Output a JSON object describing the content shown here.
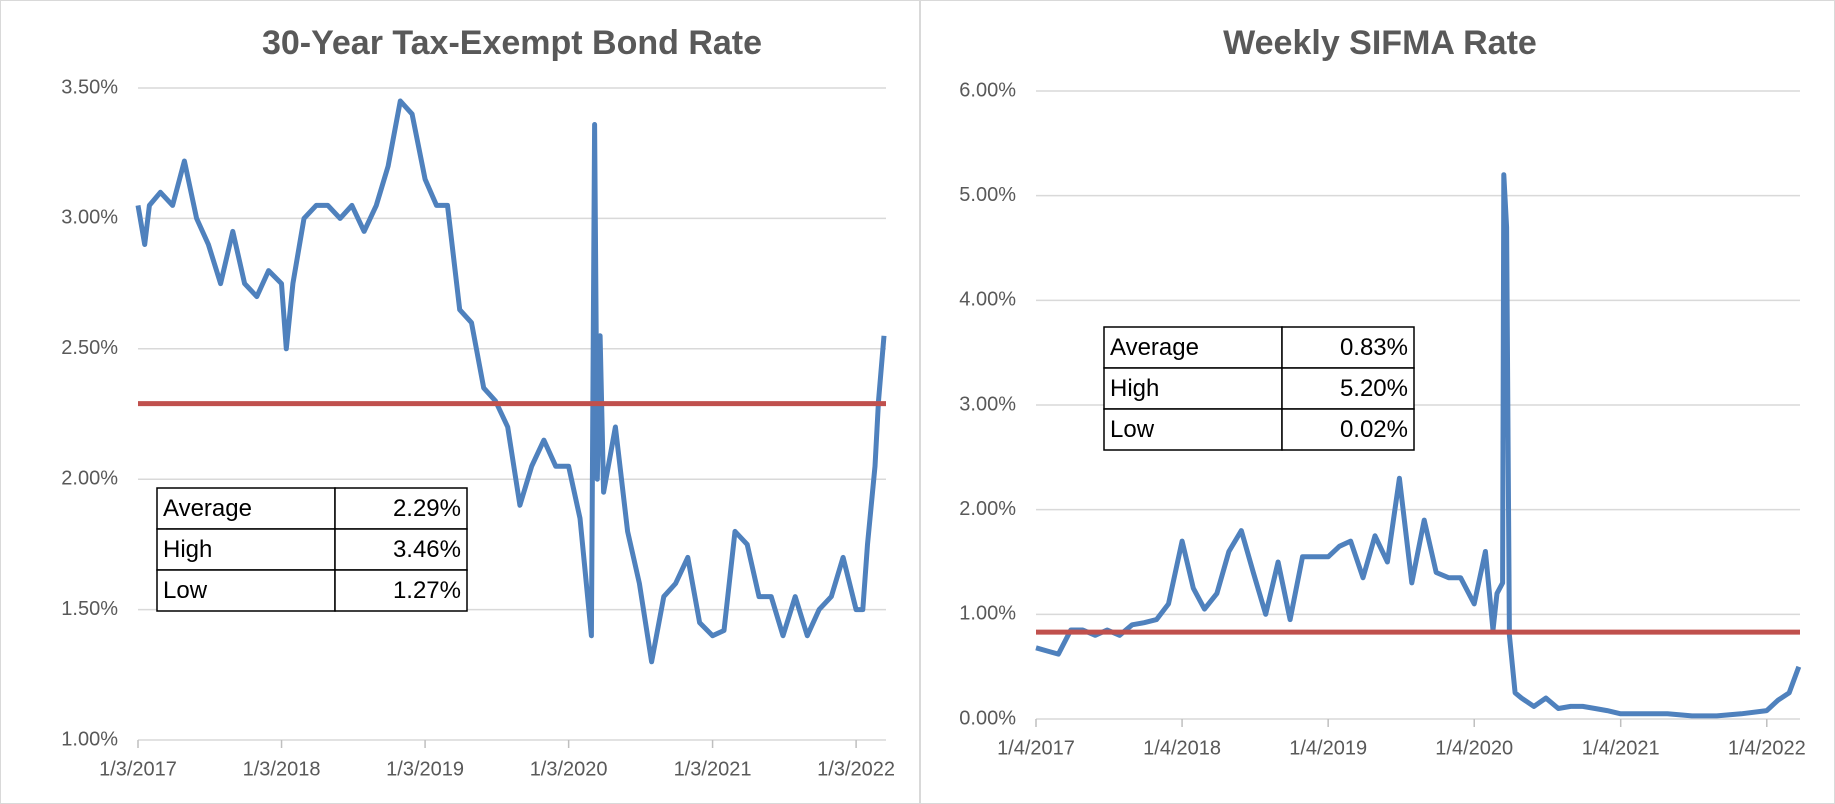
{
  "chart_data": [
    {
      "type": "line",
      "title": "30-Year Tax-Exempt Bond Rate",
      "x": [
        "2017-01-03",
        "2017-01-20",
        "2017-02-01",
        "2017-03-01",
        "2017-04-01",
        "2017-05-01",
        "2017-06-01",
        "2017-07-01",
        "2017-08-01",
        "2017-09-01",
        "2017-10-01",
        "2017-11-01",
        "2017-12-01",
        "2018-01-03",
        "2018-01-15",
        "2018-02-01",
        "2018-03-01",
        "2018-04-01",
        "2018-05-01",
        "2018-06-01",
        "2018-07-01",
        "2018-08-01",
        "2018-09-01",
        "2018-10-01",
        "2018-11-01",
        "2018-12-01",
        "2019-01-03",
        "2019-02-01",
        "2019-03-01",
        "2019-04-01",
        "2019-05-01",
        "2019-06-01",
        "2019-07-01",
        "2019-08-01",
        "2019-09-01",
        "2019-10-01",
        "2019-11-01",
        "2019-12-01",
        "2020-01-03",
        "2020-02-01",
        "2020-03-01",
        "2020-03-09",
        "2020-03-16",
        "2020-03-23",
        "2020-04-01",
        "2020-05-01",
        "2020-06-01",
        "2020-07-01",
        "2020-08-01",
        "2020-09-01",
        "2020-10-01",
        "2020-11-01",
        "2020-12-01",
        "2021-01-03",
        "2021-02-01",
        "2021-03-01",
        "2021-04-01",
        "2021-05-01",
        "2021-06-01",
        "2021-07-01",
        "2021-08-01",
        "2021-09-01",
        "2021-10-01",
        "2021-11-01",
        "2021-12-01",
        "2022-01-03",
        "2022-01-20",
        "2022-02-01",
        "2022-02-20",
        "2022-03-01",
        "2022-03-15"
      ],
      "series": [
        {
          "color": "#4f81bd",
          "values": [
            3.05,
            2.9,
            3.05,
            3.1,
            3.05,
            3.22,
            3.0,
            2.9,
            2.75,
            2.95,
            2.75,
            2.7,
            2.8,
            2.75,
            2.5,
            2.75,
            3.0,
            3.05,
            3.05,
            3.0,
            3.05,
            2.95,
            3.05,
            3.2,
            3.45,
            3.4,
            3.15,
            3.05,
            3.05,
            2.65,
            2.6,
            2.35,
            2.3,
            2.2,
            1.9,
            2.05,
            2.15,
            2.05,
            2.05,
            1.85,
            1.4,
            3.36,
            2.0,
            2.55,
            1.95,
            2.2,
            1.8,
            1.6,
            1.3,
            1.55,
            1.6,
            1.7,
            1.45,
            1.4,
            1.42,
            1.8,
            1.75,
            1.55,
            1.55,
            1.4,
            1.55,
            1.4,
            1.5,
            1.55,
            1.7,
            1.5,
            1.5,
            1.75,
            2.05,
            2.3,
            2.55
          ]
        }
      ],
      "xlim": [
        "2017-01-03",
        "2022-03-20"
      ],
      "xticks": [
        {
          "value": "2017-01-03",
          "label": "1/3/2017"
        },
        {
          "value": "2018-01-03",
          "label": "1/3/2018"
        },
        {
          "value": "2019-01-03",
          "label": "1/3/2019"
        },
        {
          "value": "2020-01-03",
          "label": "1/3/2020"
        },
        {
          "value": "2021-01-03",
          "label": "1/3/2021"
        },
        {
          "value": "2022-01-03",
          "label": "1/3/2022"
        }
      ],
      "ylim": [
        1,
        3.5
      ],
      "yticks": [
        {
          "value": 1,
          "label": "1.00%"
        },
        {
          "value": 1.5,
          "label": "1.50%"
        },
        {
          "value": 2,
          "label": "2.00%"
        },
        {
          "value": 2.5,
          "label": "2.50%"
        },
        {
          "value": 3,
          "label": "3.00%"
        },
        {
          "value": 3.5,
          "label": "3.50%"
        }
      ],
      "grid": true,
      "average": 2.29,
      "average_color": "#c0504d",
      "table": [
        [
          "Average",
          "2.29%"
        ],
        [
          "High",
          "3.46%"
        ],
        [
          "Low",
          "1.27%"
        ]
      ]
    },
    {
      "type": "line",
      "title": "Weekly SIFMA Rate",
      "x": [
        "2017-01-04",
        "2017-02-01",
        "2017-03-01",
        "2017-04-01",
        "2017-05-01",
        "2017-06-01",
        "2017-07-01",
        "2017-08-01",
        "2017-09-01",
        "2017-10-01",
        "2017-11-01",
        "2017-12-01",
        "2018-01-04",
        "2018-02-01",
        "2018-03-01",
        "2018-04-01",
        "2018-05-01",
        "2018-06-01",
        "2018-07-01",
        "2018-08-01",
        "2018-09-01",
        "2018-10-01",
        "2018-11-01",
        "2018-12-01",
        "2019-01-04",
        "2019-02-01",
        "2019-03-01",
        "2019-04-01",
        "2019-05-01",
        "2019-06-01",
        "2019-07-01",
        "2019-08-01",
        "2019-09-01",
        "2019-10-01",
        "2019-11-01",
        "2019-12-01",
        "2020-01-04",
        "2020-02-01",
        "2020-02-20",
        "2020-03-01",
        "2020-03-15",
        "2020-03-18",
        "2020-03-25",
        "2020-04-01",
        "2020-04-15",
        "2020-05-01",
        "2020-06-01",
        "2020-07-01",
        "2020-08-01",
        "2020-09-01",
        "2020-10-01",
        "2020-11-01",
        "2020-12-01",
        "2021-01-04",
        "2021-03-01",
        "2021-05-01",
        "2021-07-01",
        "2021-09-01",
        "2021-11-01",
        "2022-01-04",
        "2022-02-01",
        "2022-03-01",
        "2022-03-25"
      ],
      "series": [
        {
          "color": "#4f81bd",
          "values": [
            0.68,
            0.65,
            0.62,
            0.85,
            0.85,
            0.8,
            0.85,
            0.8,
            0.9,
            0.92,
            0.95,
            1.1,
            1.7,
            1.25,
            1.05,
            1.2,
            1.6,
            1.8,
            1.4,
            1.0,
            1.5,
            0.95,
            1.55,
            1.55,
            1.55,
            1.65,
            1.7,
            1.35,
            1.75,
            1.5,
            2.3,
            1.3,
            1.9,
            1.4,
            1.35,
            1.35,
            1.1,
            1.6,
            0.85,
            1.2,
            1.3,
            5.2,
            4.7,
            0.8,
            0.25,
            0.2,
            0.12,
            0.2,
            0.1,
            0.12,
            0.12,
            0.1,
            0.08,
            0.05,
            0.05,
            0.05,
            0.03,
            0.03,
            0.05,
            0.08,
            0.18,
            0.25,
            0.5
          ]
        }
      ],
      "xlim": [
        "2017-01-04",
        "2022-03-28"
      ],
      "xticks": [
        {
          "value": "2017-01-04",
          "label": "1/4/2017"
        },
        {
          "value": "2018-01-04",
          "label": "1/4/2018"
        },
        {
          "value": "2019-01-04",
          "label": "1/4/2019"
        },
        {
          "value": "2020-01-04",
          "label": "1/4/2020"
        },
        {
          "value": "2021-01-04",
          "label": "1/4/2021"
        },
        {
          "value": "2022-01-04",
          "label": "1/4/2022"
        }
      ],
      "ylim": [
        0,
        6
      ],
      "yticks": [
        {
          "value": 0,
          "label": "0.00%"
        },
        {
          "value": 1,
          "label": "1.00%"
        },
        {
          "value": 2,
          "label": "2.00%"
        },
        {
          "value": 3,
          "label": "3.00%"
        },
        {
          "value": 4,
          "label": "4.00%"
        },
        {
          "value": 5,
          "label": "5.00%"
        },
        {
          "value": 6,
          "label": "6.00%"
        }
      ],
      "grid": true,
      "average": 0.83,
      "average_color": "#c0504d",
      "table": [
        [
          "Average",
          "0.83%"
        ],
        [
          "High",
          "5.20%"
        ],
        [
          "Low",
          "0.02%"
        ]
      ]
    }
  ]
}
